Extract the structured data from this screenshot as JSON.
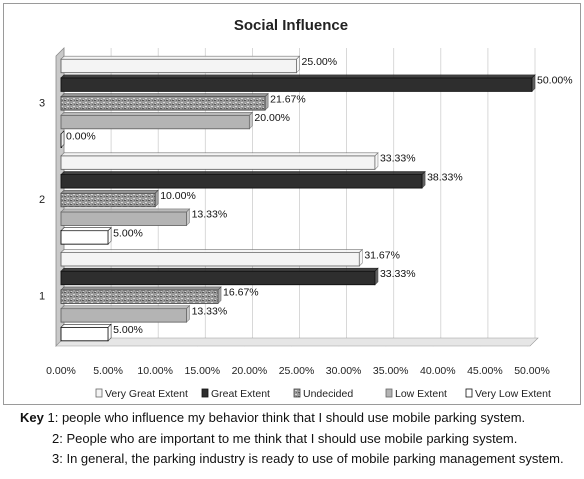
{
  "chart_data": {
    "type": "bar",
    "orientation": "horizontal",
    "title": "Social Influence",
    "categories": [
      "1",
      "2",
      "3"
    ],
    "series": [
      {
        "name": "Very Great Extent",
        "values": [
          31.67,
          33.33,
          25.0
        ],
        "labels": [
          "31.67%",
          "33.33%",
          "25.00%"
        ],
        "color": "#f4f4f4",
        "stroke": "#666666"
      },
      {
        "name": "Great Extent",
        "values": [
          33.33,
          38.33,
          50.0
        ],
        "labels": [
          "33.33%",
          "38.33%",
          "50.00%"
        ],
        "color": "#2e2e2e",
        "stroke": "#111111"
      },
      {
        "name": "Undecided",
        "values": [
          16.67,
          10.0,
          21.67
        ],
        "labels": [
          "16.67%",
          "10.00%",
          "21.67%"
        ],
        "color": "#8a8a8a",
        "stroke": "#444444",
        "pattern": "textured"
      },
      {
        "name": "Low Extent",
        "values": [
          13.33,
          13.33,
          20.0
        ],
        "labels": [
          "13.33%",
          "13.33%",
          "20.00%"
        ],
        "color": "#b4b4b4",
        "stroke": "#666666"
      },
      {
        "name": "Very Low Extent",
        "values": [
          5.0,
          5.0,
          0.0
        ],
        "labels": [
          "5.00%",
          "5.00%",
          "0.00%"
        ],
        "color": "#ffffff",
        "stroke": "#111111"
      }
    ],
    "xlim": [
      0,
      50
    ],
    "xticks": [
      "0.00%",
      "5.00%",
      "10.00%",
      "15.00%",
      "20.00%",
      "25.00%",
      "30.00%",
      "35.00%",
      "40.00%",
      "45.00%",
      "50.00%"
    ],
    "grid": true,
    "legend_position": "bottom",
    "style": "3d"
  },
  "key": {
    "heading": "Key",
    "items": [
      "1: people who influence my behavior think that I should use mobile parking system.",
      "2: People who are important to me think that I should use mobile parking system.",
      "3: In general, the parking industry is ready to use of mobile parking management system."
    ]
  }
}
